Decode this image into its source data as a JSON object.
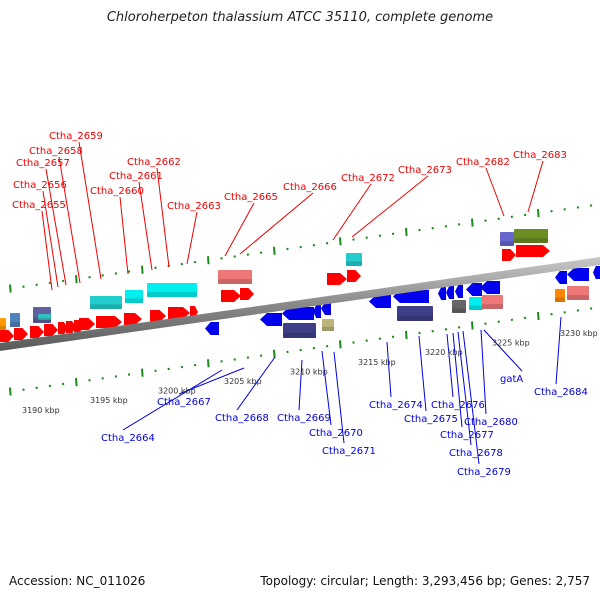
{
  "title": "Chloroherpeton thalassium ATCC 35110, complete genome",
  "footer": {
    "accession": "Accession: NC_011026",
    "summary": "Topology: circular; Length: 3,293,456 bp; Genes: 2,757"
  },
  "colors": {
    "forward_label": "#ee0000",
    "reverse_label": "#0000dd",
    "tick": "#1a8a1a",
    "backbone": "#888888"
  },
  "scale_labels": [
    "3190 kbp",
    "3195 kbp",
    "3200 kbp",
    "3205 kbp",
    "3210 kbp",
    "3215 kbp",
    "3220 kbp",
    "3225 kbp",
    "3230 kbp"
  ],
  "forward_genes": [
    {
      "label": "Ctha_2655"
    },
    {
      "label": "Ctha_2656"
    },
    {
      "label": "Ctha_2657"
    },
    {
      "label": "Ctha_2658"
    },
    {
      "label": "Ctha_2659"
    },
    {
      "label": "Ctha_2660"
    },
    {
      "label": "Ctha_2661"
    },
    {
      "label": "Ctha_2662"
    },
    {
      "label": "Ctha_2663"
    },
    {
      "label": "Ctha_2665"
    },
    {
      "label": "Ctha_2666"
    },
    {
      "label": "Ctha_2672"
    },
    {
      "label": "Ctha_2673"
    },
    {
      "label": "Ctha_2682"
    },
    {
      "label": "Ctha_2683"
    }
  ],
  "reverse_genes": [
    {
      "label": "Ctha_2664"
    },
    {
      "label": "Ctha_2667"
    },
    {
      "label": "Ctha_2668"
    },
    {
      "label": "Ctha_2669"
    },
    {
      "label": "Ctha_2670"
    },
    {
      "label": "Ctha_2671"
    },
    {
      "label": "Ctha_2674"
    },
    {
      "label": "Ctha_2675"
    },
    {
      "label": "Ctha_2676"
    },
    {
      "label": "Ctha_2677"
    },
    {
      "label": "Ctha_2678"
    },
    {
      "label": "Ctha_2679"
    },
    {
      "label": "Ctha_2680"
    },
    {
      "label": "gatA"
    },
    {
      "label": "Ctha_2684"
    }
  ]
}
